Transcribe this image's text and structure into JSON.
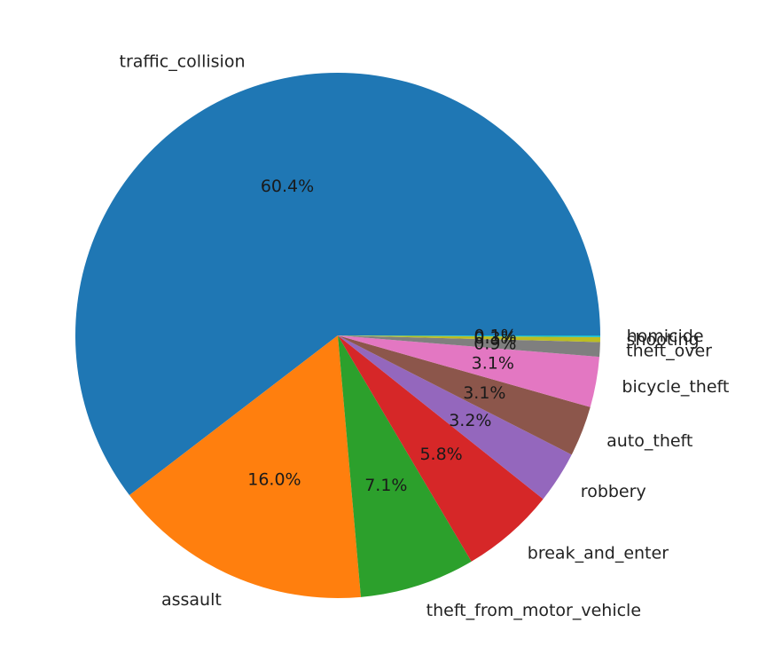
{
  "chart_data": {
    "type": "pie",
    "title": "",
    "start_angle_deg": 0,
    "direction": "counterclockwise",
    "slices": [
      {
        "label": "traffic_collision",
        "pct_label": "60.4%",
        "value": 60.4,
        "color": "#1f77b4"
      },
      {
        "label": "assault",
        "pct_label": "16.0%",
        "value": 16.0,
        "color": "#ff7f0e"
      },
      {
        "label": "theft_from_motor_vehicle",
        "pct_label": "7.1%",
        "value": 7.1,
        "color": "#2ca02c"
      },
      {
        "label": "break_and_enter",
        "pct_label": "5.8%",
        "value": 5.8,
        "color": "#d62728"
      },
      {
        "label": "robbery",
        "pct_label": "3.2%",
        "value": 3.2,
        "color": "#9467bd"
      },
      {
        "label": "auto_theft",
        "pct_label": "3.1%",
        "value": 3.1,
        "color": "#8c564b"
      },
      {
        "label": "bicycle_theft",
        "pct_label": "3.1%",
        "value": 3.1,
        "color": "#e377c2"
      },
      {
        "label": "theft_over",
        "pct_label": "0.9%",
        "value": 0.9,
        "color": "#7f7f7f"
      },
      {
        "label": "shooting",
        "pct_label": "0.3%",
        "value": 0.3,
        "color": "#bcbd22"
      },
      {
        "label": "homicide",
        "pct_label": "0.1%",
        "value": 0.1,
        "color": "#17becf"
      }
    ]
  }
}
